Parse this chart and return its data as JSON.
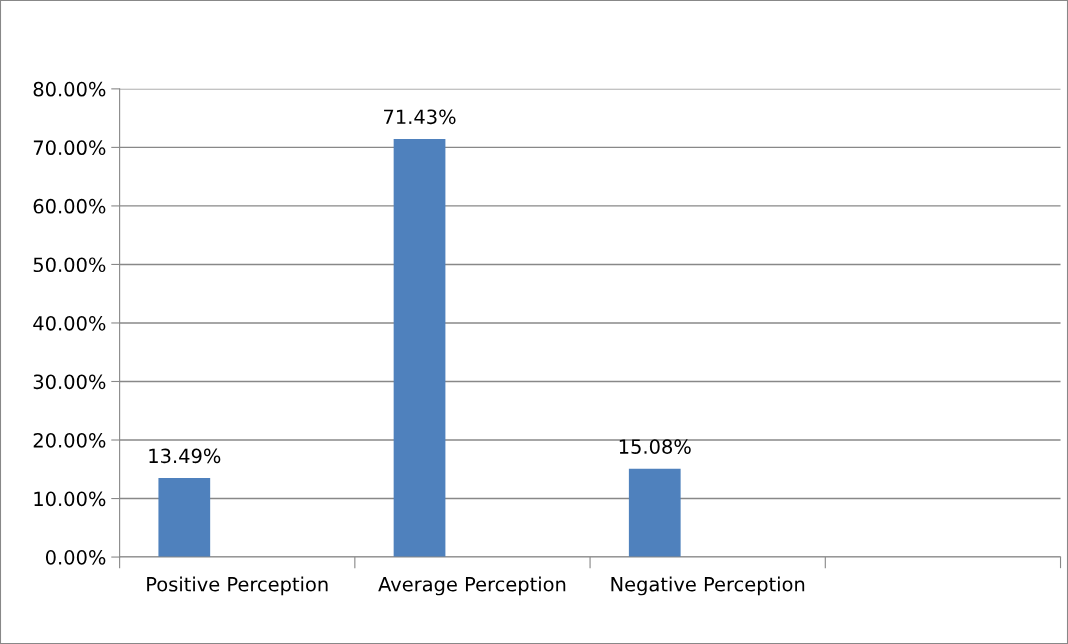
{
  "chart_data": {
    "type": "bar",
    "categories": [
      "Positive Perception",
      "Average Perception",
      "Negative Perception",
      null
    ],
    "series": [
      {
        "color": "#4f81bd",
        "values": [
          13.49,
          71.43,
          15.08,
          null
        ],
        "value_labels": [
          "13.49%",
          "71.43%",
          "15.08%",
          null
        ]
      }
    ],
    "ylim": [
      0,
      80
    ],
    "yticks": [
      {
        "value": 0,
        "label": "0.00%"
      },
      {
        "value": 10,
        "label": "10.00%"
      },
      {
        "value": 20,
        "label": "20.00%"
      },
      {
        "value": 30,
        "label": "30.00%"
      },
      {
        "value": 40,
        "label": "40.00%"
      },
      {
        "value": 50,
        "label": "50.00%"
      },
      {
        "value": 60,
        "label": "60.00%"
      },
      {
        "value": 70,
        "label": "70.00%"
      },
      {
        "value": 80,
        "label": "80.00%"
      }
    ],
    "grid": "y",
    "legend": false
  }
}
